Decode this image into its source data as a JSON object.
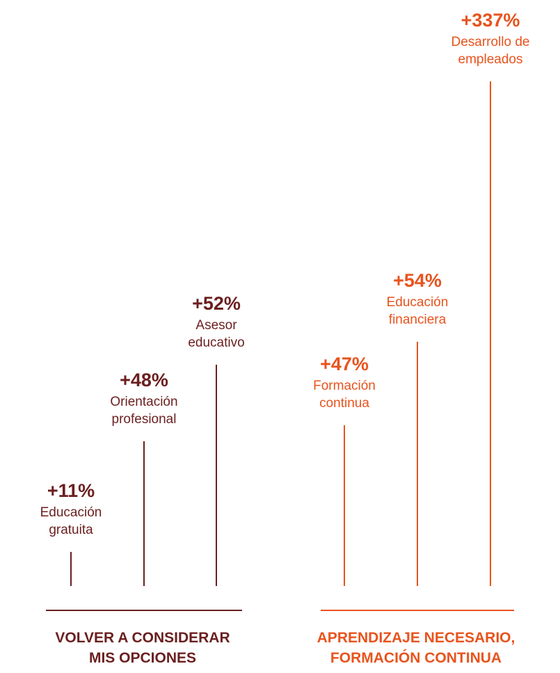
{
  "chart_data": {
    "type": "bar",
    "groups": [
      {
        "name": "VOLVER A CONSIDERAR MIS OPCIONES",
        "name_lines": [
          "VOLVER A CONSIDERAR",
          "MIS OPCIONES"
        ],
        "color": "#6b1f1f",
        "items": [
          {
            "value_label": "+11%",
            "value": 11,
            "label_lines": [
              "Educación",
              "gratuita"
            ]
          },
          {
            "value_label": "+48%",
            "value": 48,
            "label_lines": [
              "Orientación",
              "profesional"
            ]
          },
          {
            "value_label": "+52%",
            "value": 52,
            "label_lines": [
              "Asesor",
              "educativo"
            ]
          }
        ]
      },
      {
        "name": "APRENDIZAJE NECESARIO, FORMACIÓN CONTINUA",
        "name_lines": [
          "APRENDIZAJE NECESARIO,",
          "FORMACIÓN CONTINUA"
        ],
        "color": "#e8531d",
        "items": [
          {
            "value_label": "+47%",
            "value": 47,
            "label_lines": [
              "Formación",
              "continua"
            ]
          },
          {
            "value_label": "+54%",
            "value": 54,
            "label_lines": [
              "Educación",
              "financiera"
            ]
          },
          {
            "value_label": "+337%",
            "value": 337,
            "label_lines": [
              "Desarrollo de",
              "empleados"
            ]
          }
        ]
      }
    ]
  },
  "colors": {
    "dark": "#6b1f1f",
    "accent": "#e8531d"
  }
}
